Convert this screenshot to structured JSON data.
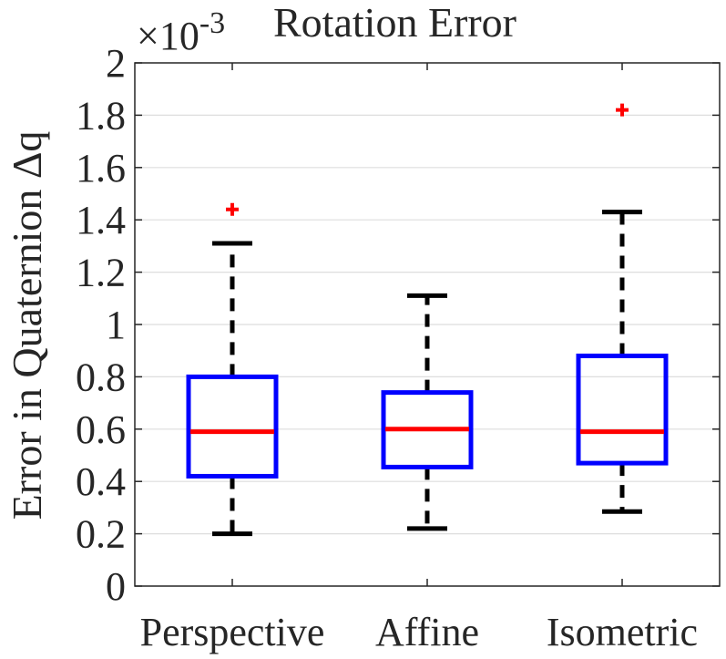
{
  "chart_data": {
    "type": "box",
    "title": "Rotation Error",
    "exponent_label": "×10",
    "exponent_value": "-3",
    "ylabel": "Error in Quaternion Δq",
    "xlabel": "",
    "ylim": [
      0,
      2
    ],
    "yticks": [
      0,
      0.2,
      0.4,
      0.6,
      0.8,
      1,
      1.2,
      1.4,
      1.6,
      1.8,
      2
    ],
    "ytick_labels": [
      "0",
      "0.2",
      "0.4",
      "0.6",
      "0.8",
      "1",
      "1.2",
      "1.4",
      "1.6",
      "1.8",
      "2"
    ],
    "grid": "horizontal",
    "categories": [
      "Perspective",
      "Affine",
      "Isometric"
    ],
    "boxes": [
      {
        "name": "Perspective",
        "lower_whisker": 0.2,
        "q1": 0.42,
        "median": 0.59,
        "q3": 0.8,
        "upper_whisker": 1.31,
        "outliers": [
          1.44
        ]
      },
      {
        "name": "Affine",
        "lower_whisker": 0.22,
        "q1": 0.455,
        "median": 0.6,
        "q3": 0.74,
        "upper_whisker": 1.11,
        "outliers": []
      },
      {
        "name": "Isometric",
        "lower_whisker": 0.285,
        "q1": 0.47,
        "median": 0.59,
        "q3": 0.88,
        "upper_whisker": 1.43,
        "outliers": [
          1.82
        ]
      }
    ],
    "colors": {
      "box": "#0000ff",
      "median": "#ff0000",
      "whisker": "#000000",
      "outlier": "#ff0000",
      "grid": "#dedede",
      "axis": "#262626"
    }
  }
}
